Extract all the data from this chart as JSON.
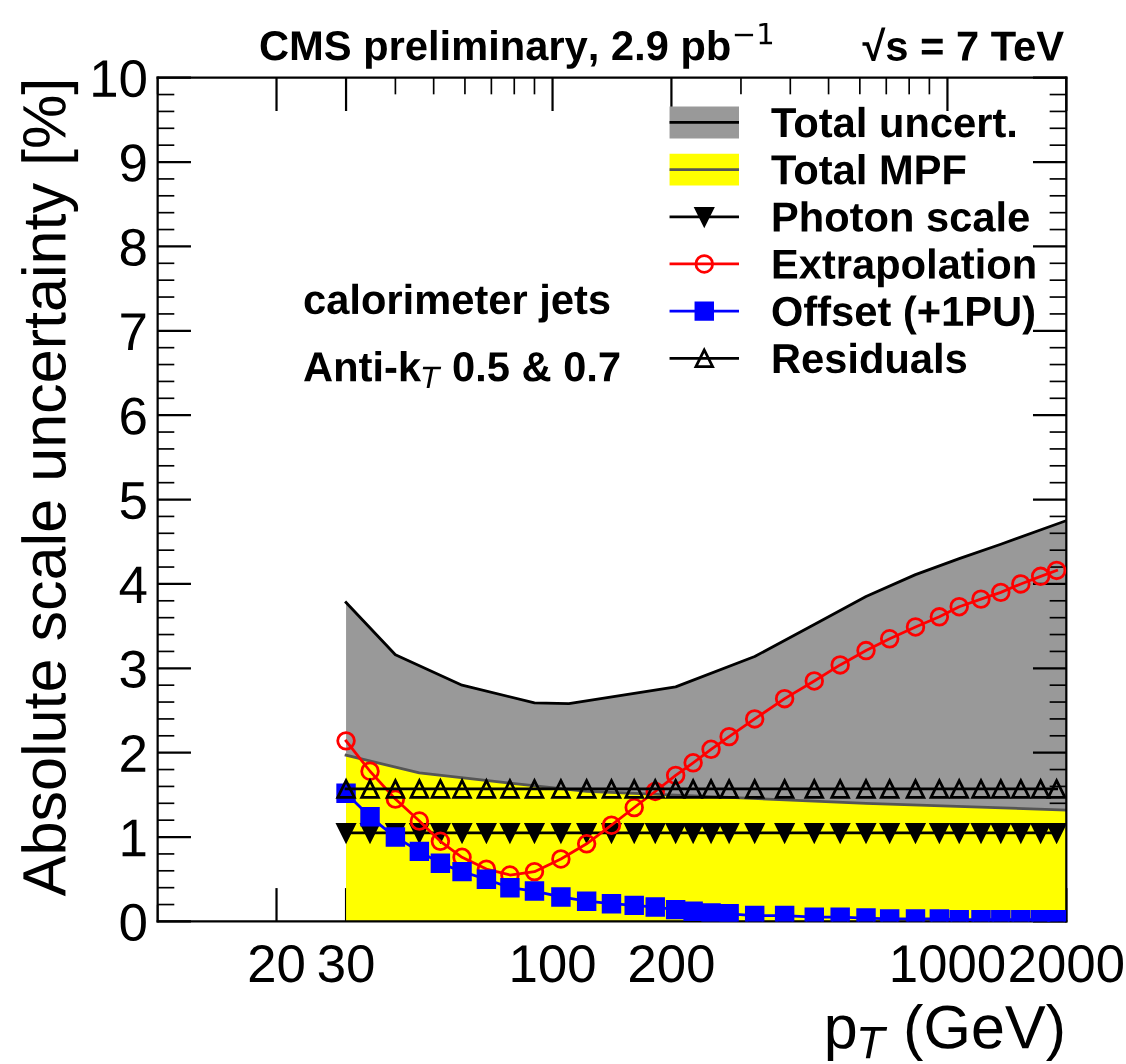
{
  "chart_data": {
    "type": "line",
    "title": "CMS preliminary, 2.9 pb$^{−1}$",
    "subtitle": "√s = 7 TeV",
    "xlabel": "p$_{T}$ (GeV)",
    "ylabel": "Absolute scale uncertainty [%]",
    "annotations": [
      "calorimeter jets",
      "Anti-k$_{T}$ 0.5 & 0.7"
    ],
    "log": "x",
    "xlim": [
      10,
      2000
    ],
    "xticks": [
      20,
      30,
      100,
      200,
      1000,
      2000
    ],
    "ylim": [
      0,
      10
    ],
    "yticks": [
      0,
      1,
      2,
      3,
      4,
      5,
      6,
      7,
      8,
      9,
      10
    ],
    "grid": false,
    "legend": "top right",
    "x": [
      30,
      34.5,
      40,
      46,
      52,
      59,
      68,
      78,
      90,
      105,
      122,
      141,
      161,
      182,
      205,
      227,
      252,
      280,
      325,
      387,
      460,
      535,
      622,
      714,
      830,
      954,
      1071,
      1216,
      1365,
      1534,
      1722,
      1890
    ],
    "series": [
      {
        "name": "Total uncert.",
        "type": "area",
        "color": "#999999",
        "x": [
          30,
          40,
          59,
          90,
          110,
          205,
          325,
          460,
          622,
          830,
          1071,
          1365,
          2000
        ],
        "values": [
          3.78,
          3.16,
          2.8,
          2.59,
          2.58,
          2.78,
          3.14,
          3.52,
          3.85,
          4.11,
          4.3,
          4.47,
          4.75
        ]
      },
      {
        "name": "Total MPF",
        "type": "area",
        "color": "#ffff00",
        "x": [
          30,
          46,
          78,
          122,
          280,
          622,
          2000
        ],
        "values": [
          1.97,
          1.76,
          1.64,
          1.54,
          1.47,
          1.4,
          1.32
        ]
      },
      {
        "name": "Photon scale",
        "color": "#000000",
        "marker": "triangle_down",
        "values": [
          1.05,
          1.05,
          1.05,
          1.05,
          1.05,
          1.05,
          1.05,
          1.05,
          1.05,
          1.05,
          1.05,
          1.05,
          1.05,
          1.05,
          1.05,
          1.05,
          1.05,
          1.05,
          1.05,
          1.05,
          1.05,
          1.05,
          1.05,
          1.05,
          1.05,
          1.05,
          1.05,
          1.05,
          1.05,
          1.05,
          1.05,
          1.05
        ]
      },
      {
        "name": "Extrapolation",
        "color": "#ff0000",
        "marker": "circle",
        "values": [
          2.14,
          1.78,
          1.45,
          1.19,
          0.95,
          0.76,
          0.62,
          0.55,
          0.59,
          0.74,
          0.92,
          1.14,
          1.35,
          1.54,
          1.73,
          1.88,
          2.04,
          2.19,
          2.4,
          2.64,
          2.85,
          3.04,
          3.21,
          3.35,
          3.49,
          3.61,
          3.73,
          3.82,
          3.9,
          4.0,
          4.09,
          4.16
        ]
      },
      {
        "name": "Offset (+1PU)",
        "color": "#0000ff",
        "marker": "square",
        "values": [
          1.52,
          1.24,
          1.0,
          0.83,
          0.69,
          0.59,
          0.5,
          0.4,
          0.36,
          0.29,
          0.24,
          0.21,
          0.19,
          0.17,
          0.14,
          0.12,
          0.1,
          0.09,
          0.07,
          0.07,
          0.05,
          0.05,
          0.04,
          0.03,
          0.03,
          0.03,
          0.02,
          0.02,
          0.02,
          0.02,
          0.02,
          0.02
        ]
      },
      {
        "name": "Residuals",
        "color": "#000000",
        "marker": "triangle",
        "values": [
          1.57,
          1.57,
          1.57,
          1.57,
          1.57,
          1.57,
          1.57,
          1.57,
          1.57,
          1.57,
          1.57,
          1.57,
          1.57,
          1.57,
          1.57,
          1.57,
          1.57,
          1.57,
          1.57,
          1.57,
          1.57,
          1.57,
          1.57,
          1.57,
          1.57,
          1.57,
          1.57,
          1.57,
          1.57,
          1.57,
          1.57,
          1.57
        ]
      }
    ]
  }
}
